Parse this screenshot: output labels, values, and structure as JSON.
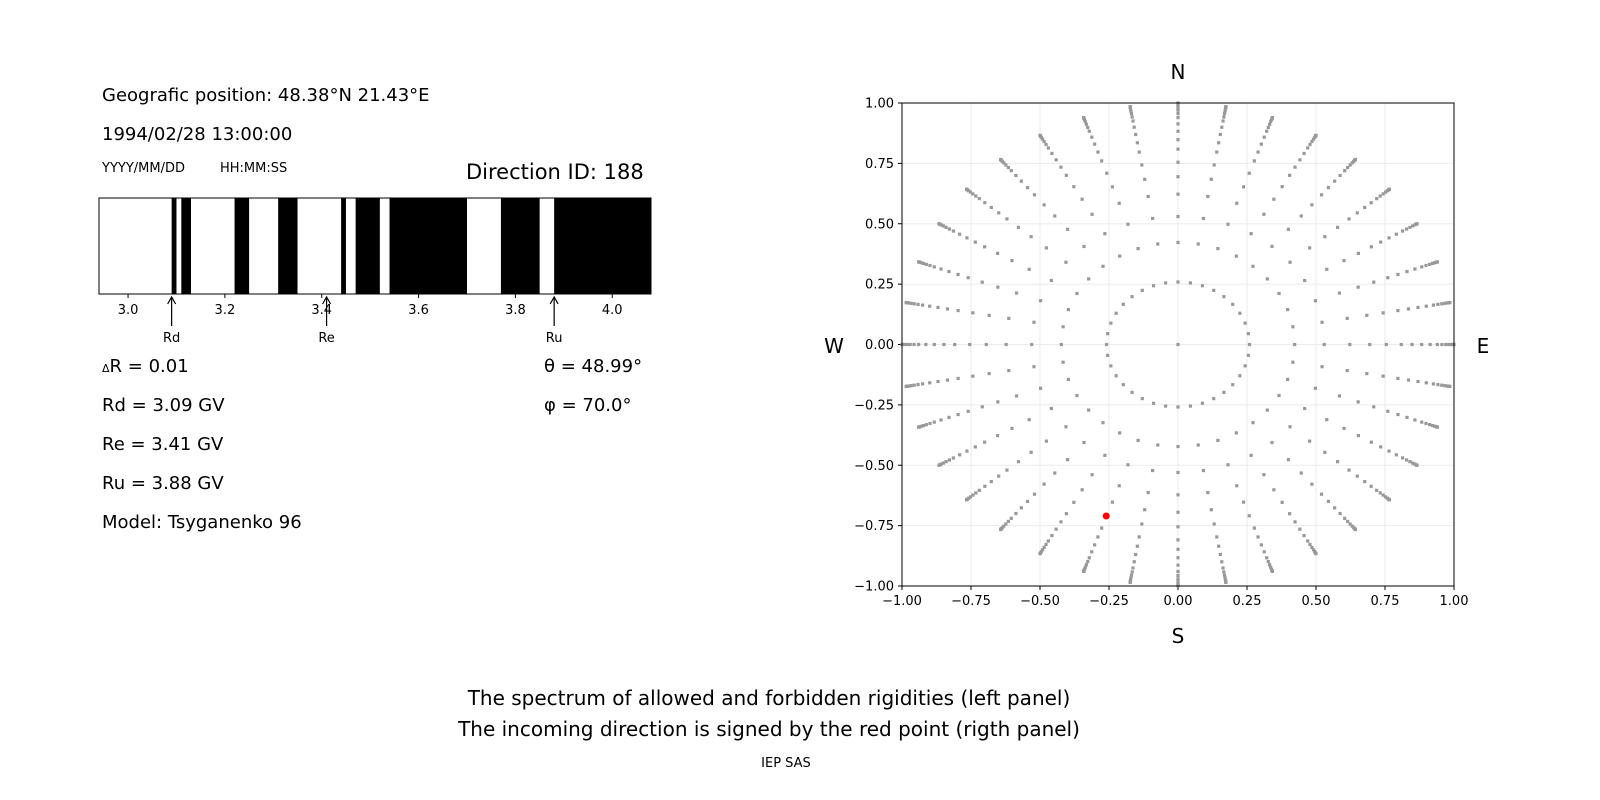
{
  "info": {
    "position": "Geografic position: 48.38°N 21.43°E",
    "datetime": "1994/02/28 13:00:00",
    "date_format": "YYYY/MM/DD",
    "time_format": "HH:MM:SS",
    "direction_id": "Direction ID: 188",
    "delta_r": "R = 0.01",
    "delta_symbol": "Δ",
    "rd": "Rd = 3.09 GV",
    "re": "Re = 3.41 GV",
    "ru": "Ru = 3.88 GV",
    "model": "Model: Tsyganenko 96",
    "theta": "θ = 48.99°",
    "phi": "φ = 70.0°"
  },
  "footer": {
    "line1": "The spectrum of allowed and forbidden rigidities (left panel)",
    "line2": "The incoming direction is signed by the red point (rigth panel)",
    "credit": "IEP SAS"
  },
  "chart_data": [
    {
      "type": "bar",
      "description_kind": "rigidity spectrum (black = forbidden, white = allowed)",
      "xlim": [
        2.94,
        4.08
      ],
      "xticks": [
        3.0,
        3.2,
        3.4,
        3.6,
        3.8,
        4.0
      ],
      "xtick_labels": [
        "3.0",
        "3.2",
        "3.4",
        "3.6",
        "3.8",
        "4.0"
      ],
      "forbidden_intervals": [
        [
          3.09,
          3.1
        ],
        [
          3.11,
          3.13
        ],
        [
          3.22,
          3.25
        ],
        [
          3.31,
          3.35
        ],
        [
          3.44,
          3.45
        ],
        [
          3.47,
          3.52
        ],
        [
          3.54,
          3.7
        ],
        [
          3.77,
          3.85
        ],
        [
          3.88,
          4.08
        ]
      ],
      "markers": [
        {
          "label": "Rd",
          "value": 3.09
        },
        {
          "label": "Re",
          "value": 3.41
        },
        {
          "label": "Ru",
          "value": 3.88
        }
      ],
      "colors": {
        "forbidden": "#000000",
        "allowed": "#ffffff"
      }
    },
    {
      "type": "scatter",
      "xlim": [
        -1,
        1
      ],
      "ylim": [
        -1,
        1
      ],
      "ticks": [
        -1.0,
        -0.75,
        -0.5,
        -0.25,
        0.0,
        0.25,
        0.5,
        0.75,
        1.0
      ],
      "tick_labels": [
        "−1.00",
        "−0.75",
        "−0.50",
        "−0.25",
        "0.00",
        "0.25",
        "0.50",
        "0.75",
        "1.00"
      ],
      "grid": true,
      "compass": {
        "top": "N",
        "bottom": "S",
        "left": "W",
        "right": "E"
      },
      "directions_grid": {
        "azimuth_step_deg": 10,
        "zenith_deg": [
          15,
          25,
          32,
          38.5,
          44,
          49,
          54,
          58,
          62,
          66,
          70,
          73,
          76,
          79,
          82,
          85,
          88,
          90
        ]
      },
      "center_point": [
        0,
        0
      ],
      "highlight_point": {
        "x": -0.26,
        "y": -0.71
      },
      "colors": {
        "points": "#999999",
        "highlight": "#ff0000",
        "grid": "#ebebeb"
      }
    }
  ]
}
